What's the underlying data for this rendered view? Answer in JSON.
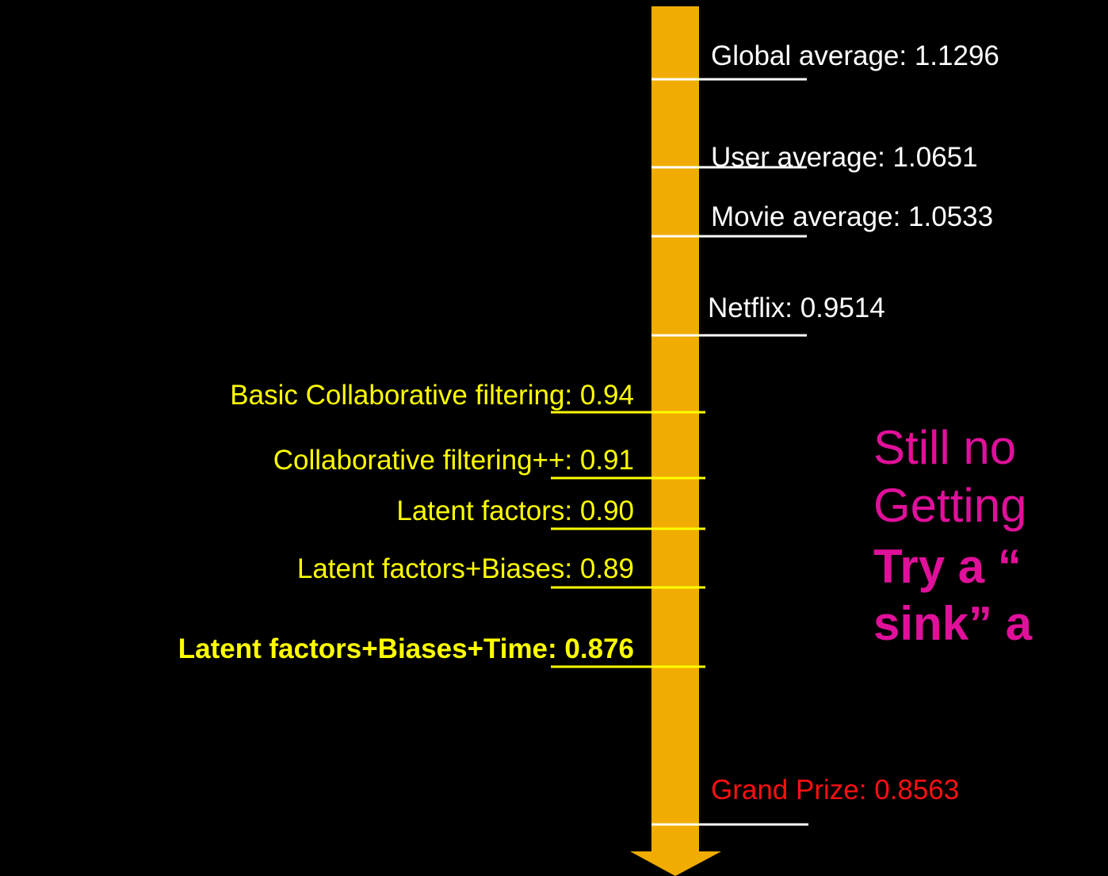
{
  "benchmarks": [
    {
      "label": "Global average: 1.1296"
    },
    {
      "label": "User average: 1.0651"
    },
    {
      "label": "Movie average: 1.0533"
    },
    {
      "label": "Netflix: 0.9514"
    },
    {
      "label": "Grand Prize: 0.8563"
    }
  ],
  "methods": [
    {
      "label": "Basic Collaborative filtering: 0.94"
    },
    {
      "label": "Collaborative filtering++: 0.91"
    },
    {
      "label": "Latent factors: 0.90"
    },
    {
      "label": "Latent factors+Biases: 0.89"
    },
    {
      "label": "Latent factors+Biases+Time: 0.876"
    }
  ],
  "callout": [
    "Still no",
    "Getting",
    "Try a “",
    "sink” a"
  ]
}
